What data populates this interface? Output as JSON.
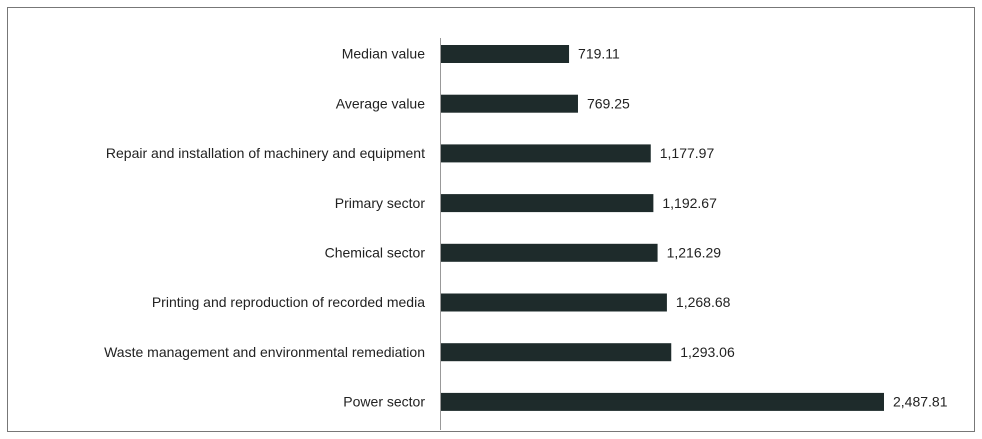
{
  "chart_data": {
    "type": "bar",
    "orientation": "horizontal",
    "categories": [
      "Median value",
      "Average value",
      "Repair and installation of machinery and equipment",
      "Primary sector",
      "Chemical sector",
      "Printing and reproduction of recorded media",
      "Waste management and environmental remediation",
      "Power sector"
    ],
    "values": [
      719.11,
      769.25,
      1177.97,
      1192.67,
      1216.29,
      1268.68,
      1293.06,
      2487.81
    ],
    "value_labels": [
      "719.11",
      "769.25",
      "1,177.97",
      "1,192.67",
      "1,216.29",
      "1,268.68",
      "1,293.06",
      "2,487.81"
    ],
    "color": "#1e2b2b"
  }
}
